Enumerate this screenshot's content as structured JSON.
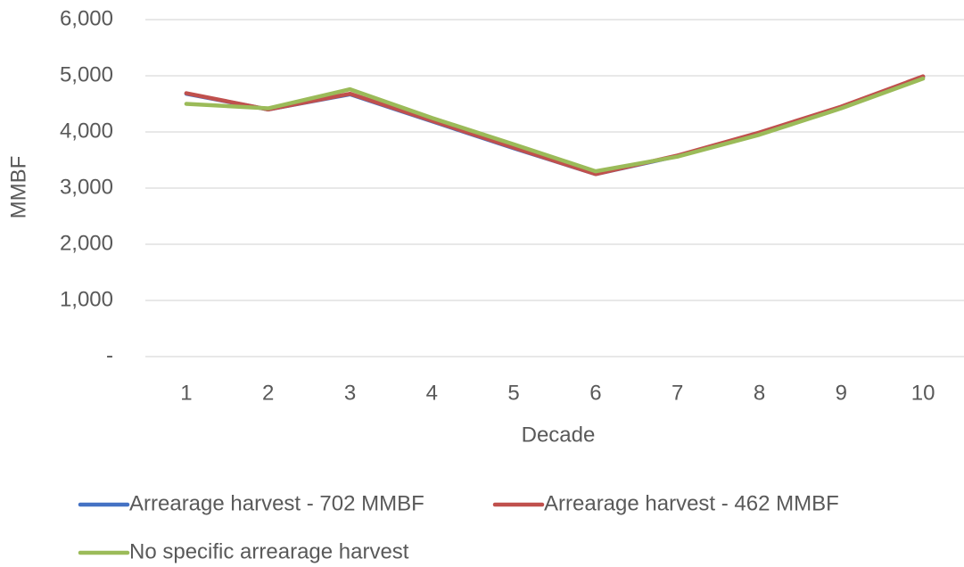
{
  "chart_data": {
    "type": "line",
    "x_label": "Decade",
    "y_label": "MMBF",
    "categories": [
      "1",
      "2",
      "3",
      "4",
      "5",
      "6",
      "7",
      "8",
      "9",
      "10"
    ],
    "series": [
      {
        "name": "Arrearage harvest - 702 MMBF",
        "color": "#4472c4",
        "values": [
          4680,
          4400,
          4670,
          4190,
          3710,
          3250,
          3570,
          3980,
          4440,
          4980
        ]
      },
      {
        "name": "Arrearage harvest - 462 MMBF",
        "color": "#c0504d",
        "values": [
          4690,
          4400,
          4680,
          4200,
          3720,
          3250,
          3580,
          3990,
          4450,
          4990
        ]
      },
      {
        "name": "No specific arrearage harvest",
        "color": "#9bbb59",
        "values": [
          4500,
          4420,
          4760,
          4250,
          3780,
          3300,
          3560,
          3950,
          4420,
          4950
        ]
      }
    ],
    "ylim": [
      0,
      6000
    ],
    "yticks": [
      {
        "value": 0,
        "label": "-"
      },
      {
        "value": 1000,
        "label": "1,000"
      },
      {
        "value": 2000,
        "label": "2,000"
      },
      {
        "value": 3000,
        "label": "3,000"
      },
      {
        "value": 4000,
        "label": "4,000"
      },
      {
        "value": 5000,
        "label": "5,000"
      },
      {
        "value": 6000,
        "label": "6,000"
      }
    ],
    "grid": true,
    "legend": "bottom"
  }
}
